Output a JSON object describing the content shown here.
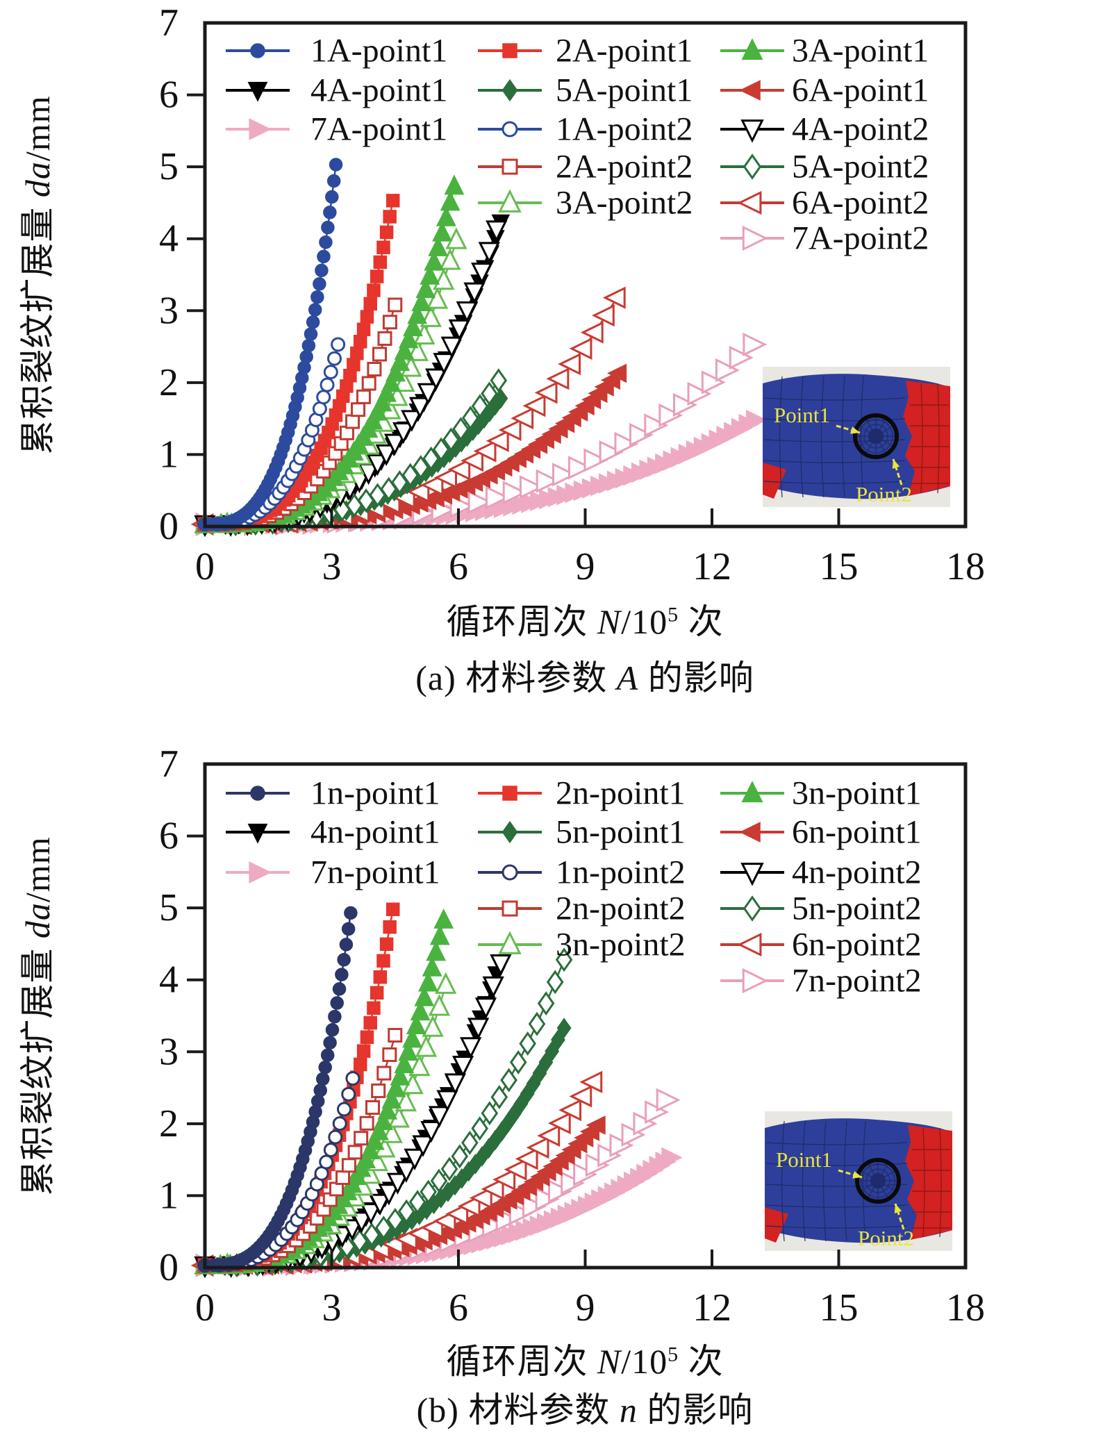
{
  "figure": {
    "background": "#ffffff",
    "frame_color": "#1a1a1a",
    "text_color": "#111111"
  },
  "inset": {
    "labels": [
      "Point1",
      "Point2"
    ],
    "colors": {
      "bg": "#e9e7e2",
      "blue": "#2e3f9b",
      "red": "#d32221",
      "yellow": "#ece43c",
      "mesh_blue": "#1d2a66",
      "mesh_red": "#8a1717",
      "circle": "#0a0a0a"
    }
  },
  "chart_data": [
    {
      "type": "line",
      "panel_id": "a",
      "caption": {
        "pre": "(a) 材料参数 ",
        "var": "A",
        "post": " 的影响"
      },
      "xlabel": {
        "pre": "循环周次 ",
        "var": "N",
        "mid": "/10",
        "sup": "5",
        "post": " 次"
      },
      "ylabel": {
        "pre": "累积裂纹扩展量 ",
        "var": "da",
        "post": "/mm"
      },
      "xlim": [
        0,
        18
      ],
      "ylim": [
        0,
        7
      ],
      "xticks": [
        0,
        3,
        6,
        9,
        12,
        15,
        18
      ],
      "yticks": [
        0,
        1,
        2,
        3,
        4,
        5,
        6,
        7
      ],
      "grid": false,
      "legend_position": "top-inside",
      "curve_exponent": 3,
      "series": [
        {
          "name": "7A-point1",
          "marker": "triangle-right",
          "filled": true,
          "color": "#efaac3",
          "x_end": 13.0,
          "y_end": 1.45,
          "n": 55,
          "size": 13,
          "legend": [
            0,
            2
          ]
        },
        {
          "name": "7A-point2",
          "marker": "triangle-right",
          "filled": false,
          "color": "#e99fba",
          "x_end": 12.95,
          "y_end": 2.5,
          "n": 30,
          "size": 14,
          "legend": [
            2,
            5
          ]
        },
        {
          "name": "6A-point1",
          "marker": "triangle-left",
          "filled": true,
          "color": "#c93a32",
          "x_end": 9.8,
          "y_end": 2.1,
          "n": 48,
          "size": 12,
          "legend": [
            2,
            1
          ]
        },
        {
          "name": "6A-point2",
          "marker": "triangle-left",
          "filled": false,
          "color": "#c93a32",
          "x_end": 9.75,
          "y_end": 3.15,
          "n": 28,
          "size": 13,
          "legend": [
            2,
            4
          ]
        },
        {
          "name": "5A-point1",
          "marker": "diamond",
          "filled": true,
          "color": "#2a6e3b",
          "x_end": 7.0,
          "y_end": 1.75,
          "n": 40,
          "size": 10,
          "legend": [
            1,
            1
          ]
        },
        {
          "name": "5A-point2",
          "marker": "diamond",
          "filled": false,
          "color": "#2a6e3b",
          "x_end": 6.95,
          "y_end": 2.0,
          "n": 24,
          "size": 11,
          "legend": [
            2,
            3
          ]
        },
        {
          "name": "4A-point1",
          "marker": "triangle-down",
          "filled": true,
          "color": "#000000",
          "x_end": 7.0,
          "y_end": 4.2,
          "n": 42,
          "size": 11,
          "legend": [
            0,
            1
          ]
        },
        {
          "name": "4A-point2",
          "marker": "triangle-down",
          "filled": false,
          "color": "#000000",
          "x_end": 6.9,
          "y_end": 4.1,
          "n": 30,
          "size": 12,
          "legend": [
            2,
            2
          ]
        },
        {
          "name": "3A-point2",
          "marker": "triangle-up",
          "filled": false,
          "color": "#67bc51",
          "x_end": 5.95,
          "y_end": 3.95,
          "n": 30,
          "size": 12,
          "legend": [
            1,
            4
          ]
        },
        {
          "name": "3A-point1",
          "marker": "triangle-up",
          "filled": true,
          "color": "#4ab33f",
          "x_end": 5.9,
          "y_end": 4.7,
          "n": 46,
          "size": 12,
          "legend": [
            2,
            0
          ]
        },
        {
          "name": "2A-point2",
          "marker": "square",
          "filled": false,
          "color": "#bf3a33",
          "x_end": 4.5,
          "y_end": 3.05,
          "n": 28,
          "size": 9,
          "legend": [
            1,
            3
          ]
        },
        {
          "name": "2A-point1",
          "marker": "square",
          "filled": true,
          "color": "#e6352c",
          "x_end": 4.45,
          "y_end": 4.5,
          "n": 44,
          "size": 9,
          "legend": [
            1,
            0
          ]
        },
        {
          "name": "1A-point2",
          "marker": "circle",
          "filled": false,
          "color": "#2c4b9e",
          "x_end": 3.15,
          "y_end": 2.5,
          "n": 28,
          "size": 9,
          "legend": [
            1,
            2
          ]
        },
        {
          "name": "1A-point1",
          "marker": "circle",
          "filled": true,
          "color": "#2c4b9e",
          "x_end": 3.1,
          "y_end": 5.0,
          "n": 48,
          "size": 9,
          "legend": [
            0,
            0
          ]
        }
      ]
    },
    {
      "type": "line",
      "panel_id": "b",
      "caption": {
        "pre": "(b) 材料参数 ",
        "var": "n",
        "post": " 的影响"
      },
      "xlabel": {
        "pre": "循环周次 ",
        "var": "N",
        "mid": "/10",
        "sup": "5",
        "post": " 次"
      },
      "ylabel": {
        "pre": "累积裂纹扩展量 ",
        "var": "da",
        "post": "/mm"
      },
      "xlim": [
        0,
        18
      ],
      "ylim": [
        0,
        7
      ],
      "xticks": [
        0,
        3,
        6,
        9,
        12,
        15,
        18
      ],
      "yticks": [
        0,
        1,
        2,
        3,
        4,
        5,
        6,
        7
      ],
      "grid": false,
      "legend_position": "top-inside",
      "curve_exponent": 3,
      "series": [
        {
          "name": "7n-point1",
          "marker": "triangle-right",
          "filled": true,
          "color": "#efaac3",
          "x_end": 11.0,
          "y_end": 1.5,
          "n": 55,
          "size": 13,
          "legend": [
            0,
            2
          ]
        },
        {
          "name": "7n-point2",
          "marker": "triangle-right",
          "filled": false,
          "color": "#e99fba",
          "x_end": 10.9,
          "y_end": 2.3,
          "n": 30,
          "size": 14,
          "legend": [
            2,
            5
          ]
        },
        {
          "name": "6n-point1",
          "marker": "triangle-left",
          "filled": true,
          "color": "#c93a32",
          "x_end": 9.3,
          "y_end": 1.95,
          "n": 48,
          "size": 12,
          "legend": [
            2,
            1
          ]
        },
        {
          "name": "6n-point2",
          "marker": "triangle-left",
          "filled": false,
          "color": "#c93a32",
          "x_end": 9.2,
          "y_end": 2.55,
          "n": 28,
          "size": 13,
          "legend": [
            2,
            4
          ]
        },
        {
          "name": "5n-point1",
          "marker": "diamond",
          "filled": true,
          "color": "#2a6e3b",
          "x_end": 8.5,
          "y_end": 3.3,
          "n": 44,
          "size": 10,
          "legend": [
            1,
            1
          ]
        },
        {
          "name": "5n-point2",
          "marker": "diamond",
          "filled": false,
          "color": "#2a6e3b",
          "x_end": 8.5,
          "y_end": 4.25,
          "n": 30,
          "size": 11,
          "legend": [
            2,
            3
          ]
        },
        {
          "name": "4n-point1",
          "marker": "triangle-down",
          "filled": true,
          "color": "#000000",
          "x_end": 6.9,
          "y_end": 4.05,
          "n": 42,
          "size": 11,
          "legend": [
            0,
            1
          ]
        },
        {
          "name": "4n-point2",
          "marker": "triangle-down",
          "filled": false,
          "color": "#000000",
          "x_end": 7.0,
          "y_end": 4.2,
          "n": 30,
          "size": 12,
          "legend": [
            2,
            2
          ]
        },
        {
          "name": "3n-point2",
          "marker": "triangle-up",
          "filled": false,
          "color": "#67bc51",
          "x_end": 5.7,
          "y_end": 3.9,
          "n": 28,
          "size": 12,
          "legend": [
            1,
            4
          ]
        },
        {
          "name": "3n-point1",
          "marker": "triangle-up",
          "filled": true,
          "color": "#4ab33f",
          "x_end": 5.65,
          "y_end": 4.8,
          "n": 46,
          "size": 12,
          "legend": [
            2,
            0
          ]
        },
        {
          "name": "2n-point2",
          "marker": "square",
          "filled": false,
          "color": "#bf3a33",
          "x_end": 4.5,
          "y_end": 3.2,
          "n": 26,
          "size": 9,
          "legend": [
            1,
            3
          ]
        },
        {
          "name": "2n-point1",
          "marker": "square",
          "filled": true,
          "color": "#e6352c",
          "x_end": 4.45,
          "y_end": 4.95,
          "n": 44,
          "size": 9,
          "legend": [
            1,
            0
          ]
        },
        {
          "name": "1n-point2",
          "marker": "circle",
          "filled": false,
          "color": "#2b3768",
          "x_end": 3.5,
          "y_end": 2.6,
          "n": 26,
          "size": 9,
          "legend": [
            1,
            2
          ]
        },
        {
          "name": "1n-point1",
          "marker": "circle",
          "filled": true,
          "color": "#2b3768",
          "x_end": 3.45,
          "y_end": 4.9,
          "n": 48,
          "size": 9,
          "legend": [
            0,
            0
          ]
        }
      ]
    }
  ]
}
